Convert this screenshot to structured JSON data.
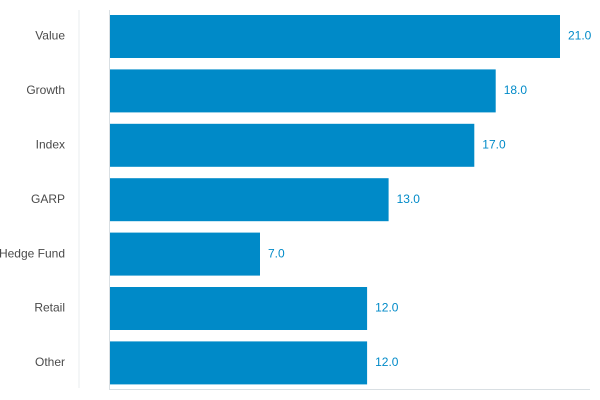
{
  "chart_data": {
    "type": "bar",
    "orientation": "horizontal",
    "categories": [
      "Value",
      "Growth",
      "Index",
      "GARP",
      "Hedge Fund",
      "Retail",
      "Other"
    ],
    "values": [
      21.0,
      18.0,
      17.0,
      13.0,
      7.0,
      12.0,
      12.0
    ],
    "value_labels": [
      "21.0",
      "18.0",
      "17.0",
      "13.0",
      "7.0",
      "12.0",
      "12.0"
    ],
    "title": "",
    "xlabel": "",
    "ylabel": "",
    "xlim": [
      0,
      22.4
    ],
    "grid": false,
    "legend": "none",
    "bar_color": "#008ac8",
    "label_color": "#008ac8",
    "axis_color": "#d9dfe3"
  }
}
